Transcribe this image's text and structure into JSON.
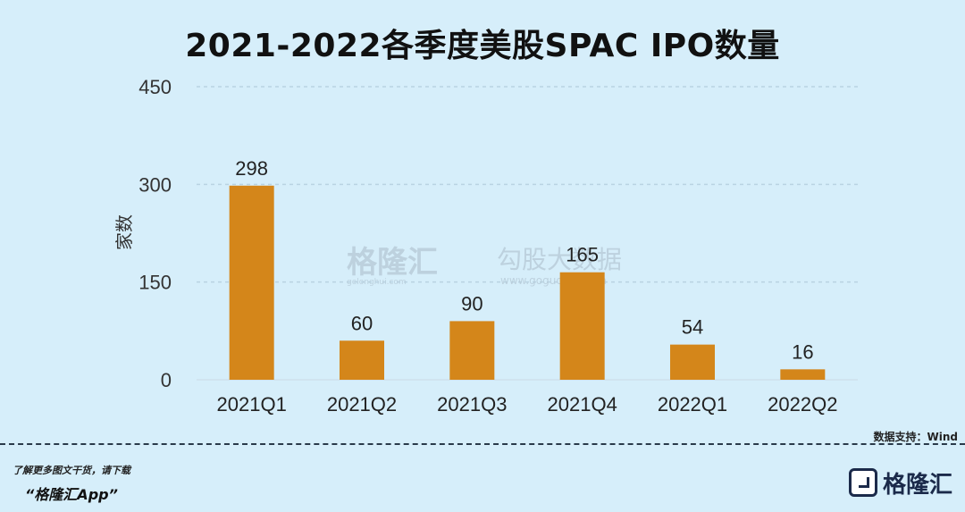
{
  "title": "2021-2022各季度美股SPAC IPO数量",
  "chart_data": {
    "type": "bar",
    "categories": [
      "2021Q1",
      "2021Q2",
      "2021Q3",
      "2021Q4",
      "2022Q1",
      "2022Q2"
    ],
    "values": [
      298,
      60,
      90,
      165,
      54,
      16
    ],
    "ylabel": "家数",
    "yticks": [
      0,
      150,
      300,
      450
    ],
    "ylim": [
      0,
      450
    ],
    "grid": true,
    "bar_color": "#d4861a",
    "data_labels": true
  },
  "watermark": {
    "brand": "格隆汇",
    "tagline": "勾股大数据",
    "url": "www.gogudata.com",
    "sub": "gelonghui.com"
  },
  "source": "数据支持：Wind",
  "footer": {
    "note": "了解更多图文干货，请下载",
    "app": "“格隆汇App”",
    "brand": "格隆汇"
  },
  "colors": {
    "background": "#d6eefa",
    "bar": "#d4861a",
    "grid": "#b9d3e2"
  }
}
